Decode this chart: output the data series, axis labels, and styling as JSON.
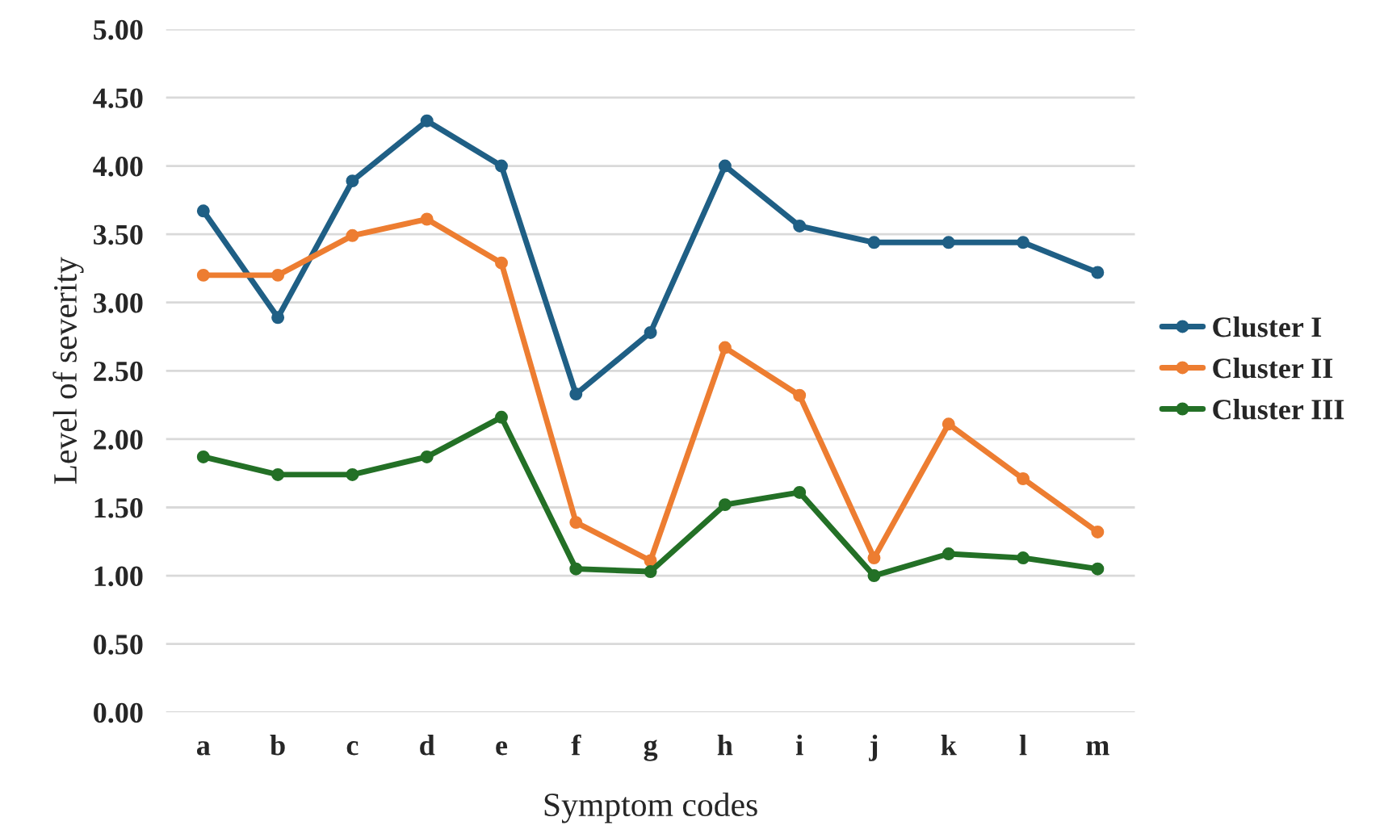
{
  "chart_data": {
    "type": "line",
    "xlabel": "Symptom codes",
    "ylabel": "Level of severity",
    "categories": [
      "a",
      "b",
      "c",
      "d",
      "e",
      "f",
      "g",
      "h",
      "i",
      "j",
      "k",
      "l",
      "m"
    ],
    "series": [
      {
        "name": "Cluster I",
        "color": "#1f5f85",
        "values": [
          3.67,
          2.89,
          3.89,
          4.33,
          4.0,
          2.33,
          2.78,
          4.0,
          3.56,
          3.44,
          3.44,
          3.44,
          3.22
        ]
      },
      {
        "name": "Cluster II",
        "color": "#ed7d31",
        "values": [
          3.2,
          3.2,
          3.49,
          3.61,
          3.29,
          1.39,
          1.11,
          2.67,
          2.32,
          1.13,
          2.11,
          1.71,
          1.32
        ]
      },
      {
        "name": "Cluster III",
        "color": "#237026",
        "values": [
          1.87,
          1.74,
          1.74,
          1.87,
          2.16,
          1.05,
          1.03,
          1.52,
          1.61,
          1.0,
          1.16,
          1.13,
          1.05
        ]
      }
    ],
    "ylim": [
      0,
      5
    ],
    "yticks": [
      {
        "value": 0,
        "label": "0.00"
      },
      {
        "value": 0.5,
        "label": "0.50"
      },
      {
        "value": 1,
        "label": "1.00"
      },
      {
        "value": 1.5,
        "label": "1.50"
      },
      {
        "value": 2,
        "label": "2.00"
      },
      {
        "value": 2.5,
        "label": "2.50"
      },
      {
        "value": 3,
        "label": "3.00"
      },
      {
        "value": 3.5,
        "label": "3.50"
      },
      {
        "value": 4,
        "label": "4.00"
      },
      {
        "value": 4.5,
        "label": "4.50"
      },
      {
        "value": 5,
        "label": "5.00"
      }
    ],
    "grid": "y",
    "legend": "right",
    "marker": "circle",
    "line_style": "solid"
  }
}
